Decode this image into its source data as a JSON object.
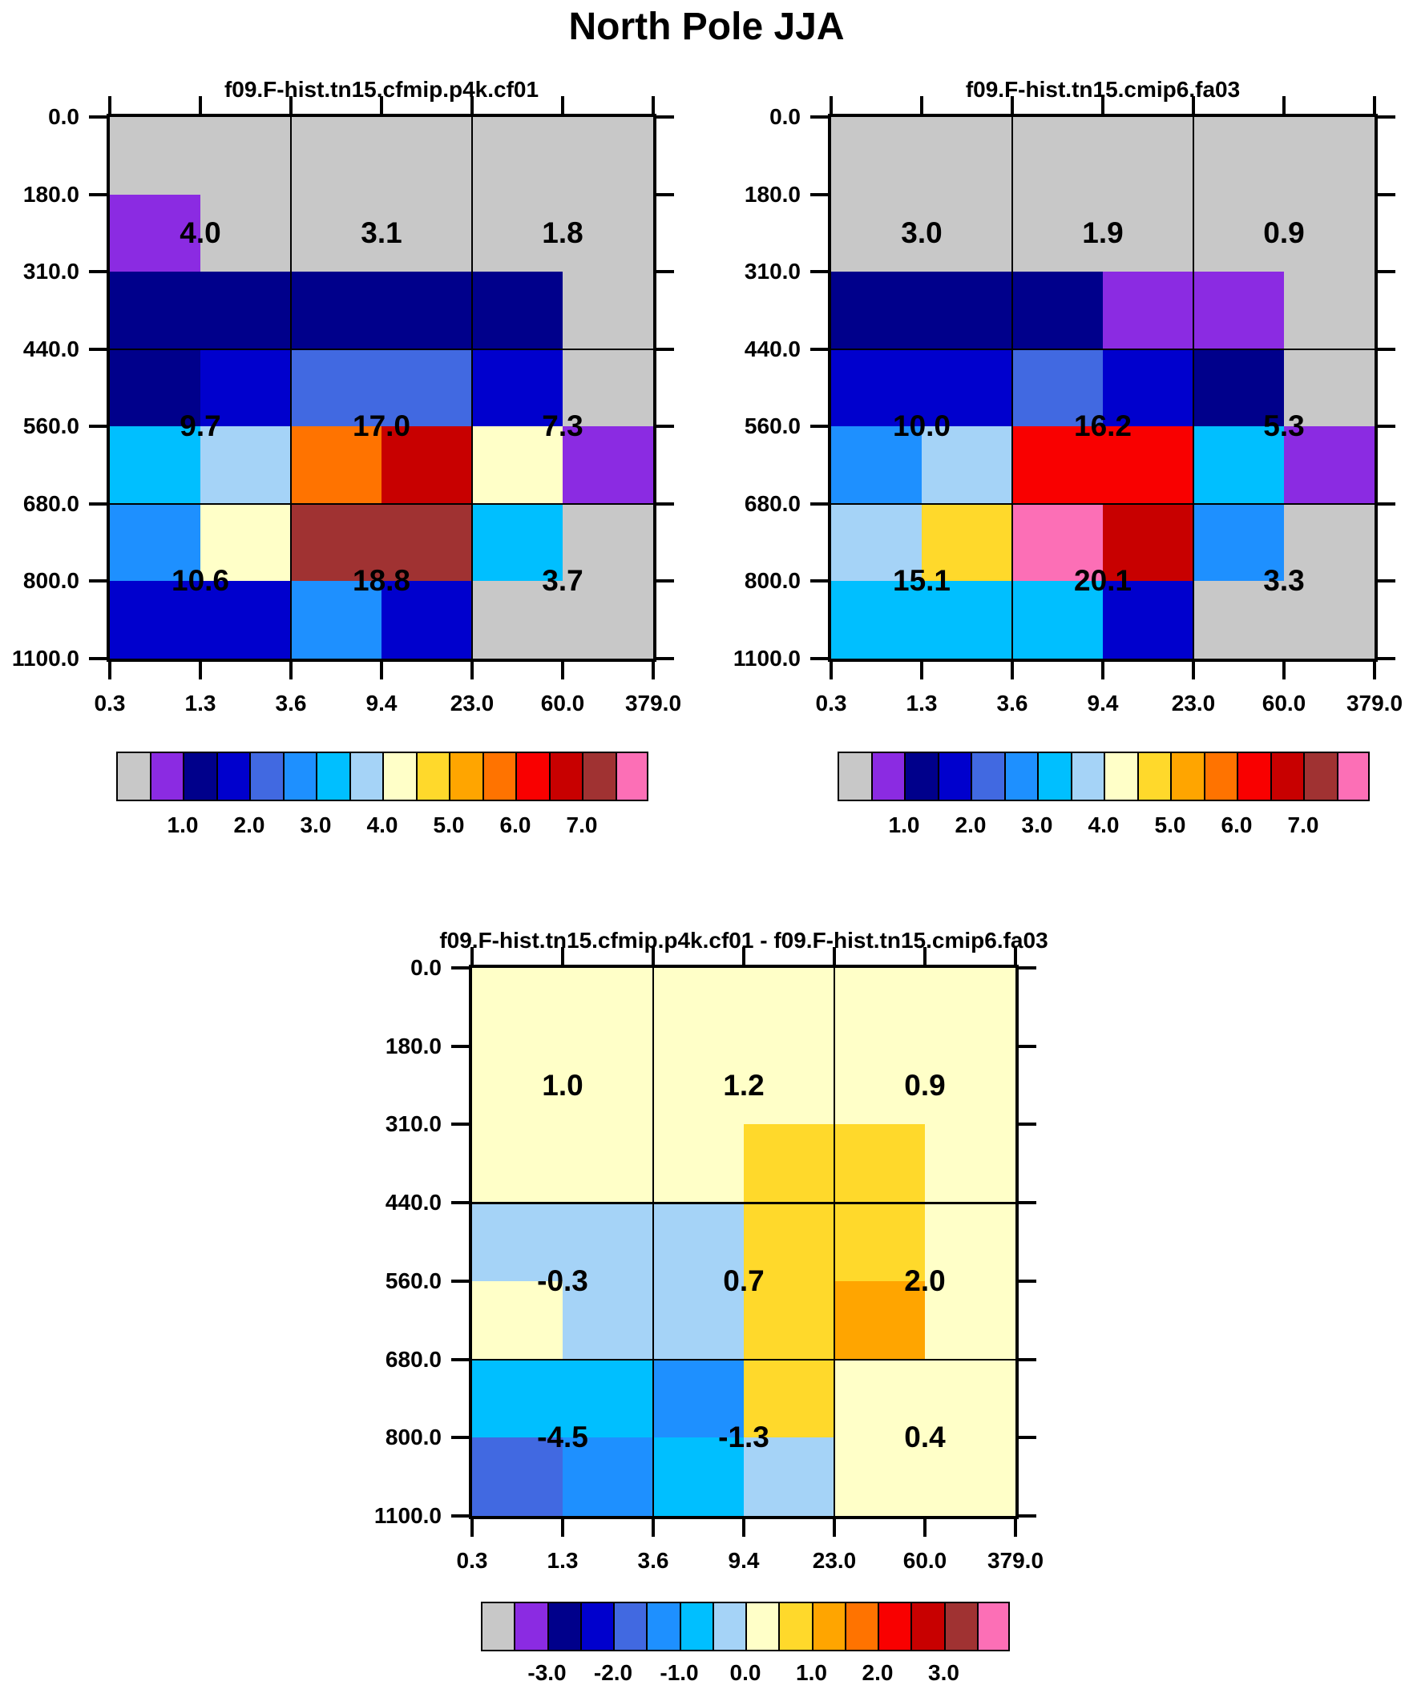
{
  "title": "North Pole JJA",
  "chart_data": {
    "type": "heatmap",
    "description": "Cloud-top pressure vs optical depth joint histograms (3x3 block sums overlaid) with difference panel",
    "x_tick_labels": [
      "0.3",
      "1.3",
      "3.6",
      "9.4",
      "23.0",
      "60.0",
      "379.0"
    ],
    "y_tick_labels": [
      "0.0",
      "180.0",
      "310.0",
      "440.0",
      "560.0",
      "680.0",
      "800.0",
      "1100.0"
    ],
    "grid": {
      "columns": 6,
      "rows": 7,
      "superblock_cols": 3,
      "superblock_rows": 3
    },
    "color_key_order": [
      "gray",
      "purple",
      "navy",
      "medblue",
      "royal",
      "dodger",
      "deepsky",
      "lightsky",
      "lemon",
      "gold",
      "orange",
      "orangered",
      "red",
      "darkred",
      "brown",
      "pink"
    ],
    "palette": {
      "gray": "#C8C8C8",
      "purple": "#8B2BE2",
      "navy": "#00008B",
      "medblue": "#0000CD",
      "royal": "#4169E1",
      "dodger": "#1E90FF",
      "deepsky": "#00BFFF",
      "lightsky": "#A5D3F7",
      "lemon": "#FFFFC8",
      "gold": "#FFD92B",
      "orange": "#FFA500",
      "orangered": "#FF7300",
      "red": "#F90000",
      "darkred": "#C80000",
      "brown": "#A03232",
      "pink": "#FC6FB6"
    },
    "panels": [
      {
        "title": "f09.F-hist.tn15.cfmip.p4k.cf01",
        "cells": [
          [
            "gray",
            "gray",
            "gray",
            "gray",
            "gray",
            "gray"
          ],
          [
            "purple",
            "gray",
            "gray",
            "gray",
            "gray",
            "gray"
          ],
          [
            "navy",
            "navy",
            "navy",
            "navy",
            "navy",
            "gray"
          ],
          [
            "navy",
            "medblue",
            "royal",
            "royal",
            "medblue",
            "gray"
          ],
          [
            "deepsky",
            "lightsky",
            "orangered",
            "darkred",
            "lemon",
            "purple"
          ],
          [
            "dodger",
            "lemon",
            "brown",
            "brown",
            "deepsky",
            "gray"
          ],
          [
            "medblue",
            "medblue",
            "dodger",
            "medblue",
            "gray",
            "gray"
          ]
        ],
        "block_values": [
          [
            "4.0",
            "3.1",
            "1.8"
          ],
          [
            "9.7",
            "17.0",
            "7.3"
          ],
          [
            "10.6",
            "18.8",
            "3.7"
          ]
        ]
      },
      {
        "title": "f09.F-hist.tn15.cmip6.fa03",
        "cells": [
          [
            "gray",
            "gray",
            "gray",
            "gray",
            "gray",
            "gray"
          ],
          [
            "gray",
            "gray",
            "gray",
            "gray",
            "gray",
            "gray"
          ],
          [
            "navy",
            "navy",
            "navy",
            "purple",
            "purple",
            "gray"
          ],
          [
            "medblue",
            "medblue",
            "royal",
            "medblue",
            "navy",
            "gray"
          ],
          [
            "dodger",
            "lightsky",
            "red",
            "red",
            "deepsky",
            "purple"
          ],
          [
            "lightsky",
            "gold",
            "pink",
            "darkred",
            "dodger",
            "gray"
          ],
          [
            "deepsky",
            "deepsky",
            "deepsky",
            "medblue",
            "gray",
            "gray"
          ]
        ],
        "block_values": [
          [
            "3.0",
            "1.9",
            "0.9"
          ],
          [
            "10.0",
            "16.2",
            "5.3"
          ],
          [
            "15.1",
            "20.1",
            "3.3"
          ]
        ]
      },
      {
        "title": "f09.F-hist.tn15.cfmip.p4k.cf01 - f09.F-hist.tn15.cmip6.fa03",
        "cells": [
          [
            "lemon",
            "lemon",
            "lemon",
            "lemon",
            "lemon",
            "lemon"
          ],
          [
            "lemon",
            "lemon",
            "lemon",
            "lemon",
            "lemon",
            "lemon"
          ],
          [
            "lemon",
            "lemon",
            "lemon",
            "gold",
            "gold",
            "lemon"
          ],
          [
            "lightsky",
            "lightsky",
            "lightsky",
            "gold",
            "gold",
            "lemon"
          ],
          [
            "lemon",
            "lightsky",
            "lightsky",
            "gold",
            "orange",
            "lemon"
          ],
          [
            "deepsky",
            "deepsky",
            "dodger",
            "gold",
            "lemon",
            "lemon"
          ],
          [
            "royal",
            "dodger",
            "deepsky",
            "lightsky",
            "lemon",
            "lemon"
          ]
        ],
        "block_values": [
          [
            "1.0",
            "1.2",
            "0.9"
          ],
          [
            "-0.3",
            "0.7",
            "2.0"
          ],
          [
            "-4.5",
            "-1.3",
            "0.4"
          ]
        ]
      }
    ],
    "colorbars": [
      {
        "panel": 0,
        "labels": [
          "1.0",
          "2.0",
          "3.0",
          "4.0",
          "5.0",
          "6.0",
          "7.0"
        ]
      },
      {
        "panel": 1,
        "labels": [
          "1.0",
          "2.0",
          "3.0",
          "4.0",
          "5.0",
          "6.0",
          "7.0"
        ]
      },
      {
        "panel": 2,
        "labels": [
          "-3.0",
          "-2.0",
          "-1.0",
          "0.0",
          "1.0",
          "2.0",
          "3.0"
        ]
      }
    ]
  }
}
